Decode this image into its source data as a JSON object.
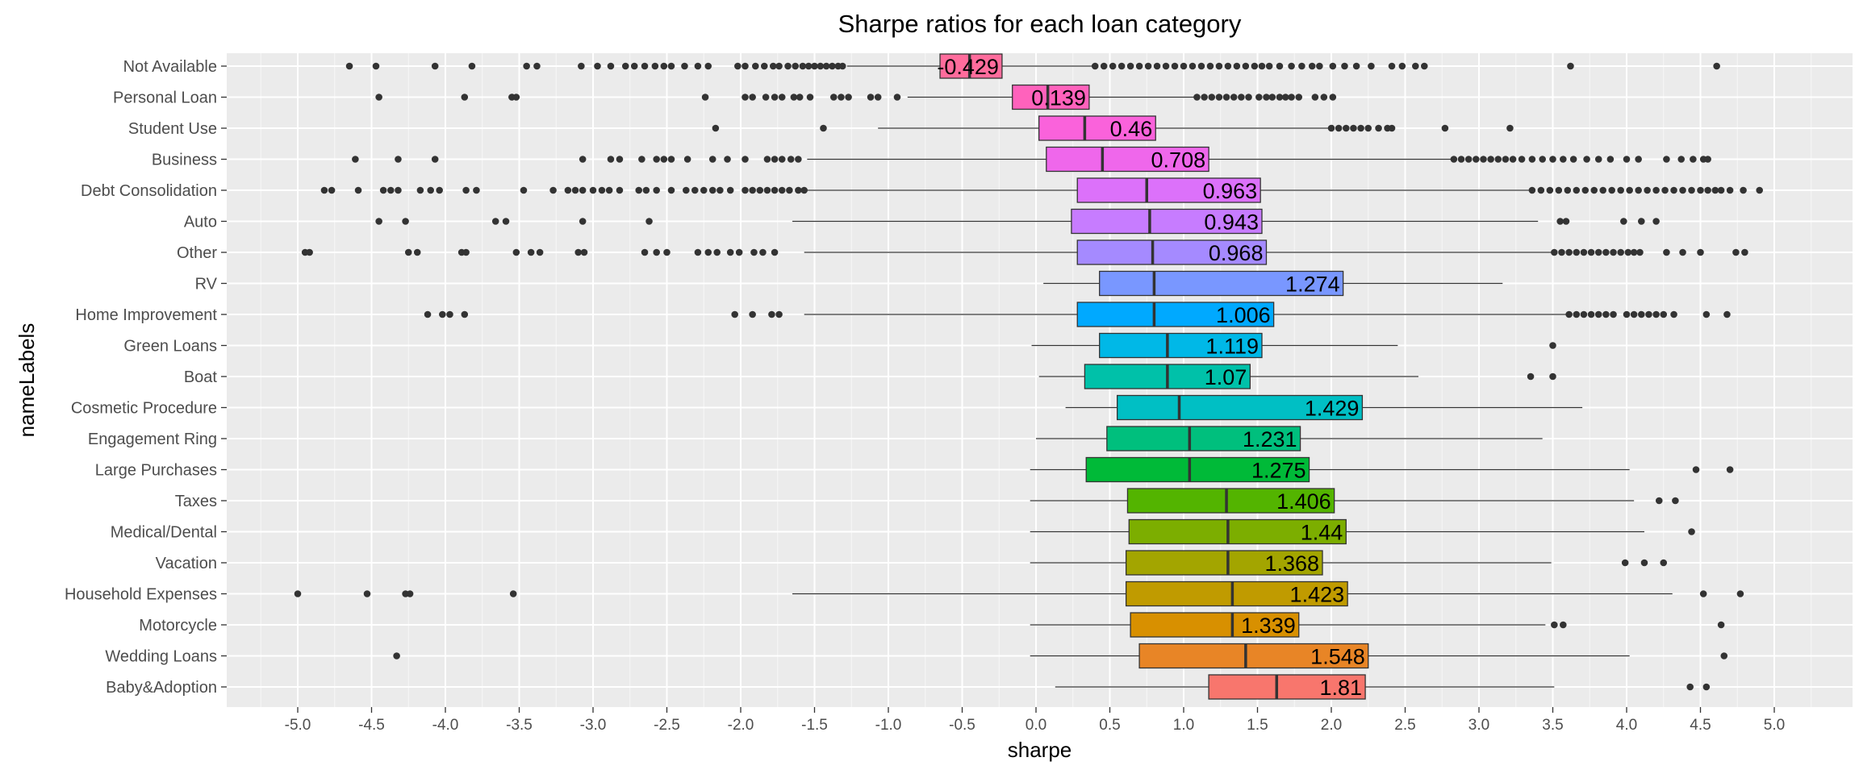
{
  "chart_data": {
    "type": "boxplot",
    "orientation": "horizontal",
    "title": "Sharpe ratios for each loan category",
    "xlabel": "sharpe",
    "ylabel": "nameLabels",
    "xlim": [
      -5.5,
      5.25
    ],
    "x_ticks": [
      -5.0,
      -4.5,
      -4.0,
      -3.5,
      -3.0,
      -2.5,
      -2.0,
      -1.5,
      -1.0,
      -0.5,
      0.0,
      0.5,
      1.0,
      1.5,
      2.0,
      2.5,
      3.0,
      3.5,
      4.0,
      4.5,
      5.0
    ],
    "x_tick_labels": [
      "-5.0",
      "-4.5",
      "-4.0",
      "-3.5",
      "-3.0",
      "-2.5",
      "-2.0",
      "-1.5",
      "-1.0",
      "-0.5",
      "0.0",
      "0.5",
      "1.0",
      "1.5",
      "2.0",
      "2.5",
      "3.0",
      "3.5",
      "4.0",
      "4.5",
      "5.0"
    ],
    "grid": true,
    "legend": "none",
    "categories": [
      {
        "name": "Not Available",
        "color": "#FF6C9C",
        "whisker_low": -1.28,
        "q1": -0.65,
        "median": -0.45,
        "q3": -0.23,
        "whisker_high": 0.38,
        "mean_label": "-0.429",
        "outliers": [
          -4.65,
          -4.47,
          -4.07,
          -3.82,
          -3.45,
          -3.38,
          -3.08,
          -2.97,
          -2.88,
          -2.78,
          -2.72,
          -2.65,
          -2.58,
          -2.52,
          -2.47,
          -2.38,
          -2.29,
          -2.22,
          -2.02,
          -1.97,
          -1.9,
          -1.84,
          -1.78,
          -1.74,
          -1.68,
          -1.63,
          -1.58,
          -1.54,
          -1.5,
          -1.46,
          -1.42,
          -1.38,
          -1.34,
          -1.31,
          0.4,
          0.46,
          0.52,
          0.58,
          0.64,
          0.7,
          0.76,
          0.82,
          0.88,
          0.94,
          1.0,
          1.06,
          1.12,
          1.18,
          1.24,
          1.3,
          1.36,
          1.42,
          1.48,
          1.53,
          1.58,
          1.65,
          1.73,
          1.8,
          1.87,
          1.92,
          2.01,
          2.09,
          2.17,
          2.27,
          2.41,
          2.48,
          2.57,
          2.63,
          3.62,
          4.61
        ]
      },
      {
        "name": "Personal Loan",
        "color": "#FF62BC",
        "whisker_low": -0.87,
        "q1": -0.16,
        "median": 0.08,
        "q3": 0.36,
        "whisker_high": 1.08,
        "mean_label": "0.139",
        "outliers": [
          -4.45,
          -3.87,
          -3.55,
          -3.52,
          -2.24,
          -1.97,
          -1.92,
          -1.83,
          -1.77,
          -1.72,
          -1.64,
          -1.6,
          -1.53,
          -1.37,
          -1.32,
          -1.27,
          -1.12,
          -1.07,
          -0.94,
          1.09,
          1.14,
          1.19,
          1.24,
          1.29,
          1.34,
          1.39,
          1.44,
          1.51,
          1.56,
          1.6,
          1.65,
          1.69,
          1.73,
          1.78,
          1.89,
          1.95,
          2.01
        ]
      },
      {
        "name": "Student Use",
        "color": "#FA62DB",
        "whisker_low": -1.07,
        "q1": 0.02,
        "median": 0.33,
        "q3": 0.81,
        "whisker_high": 1.98,
        "mean_label": "0.46",
        "outliers": [
          -2.17,
          -1.44,
          2.0,
          2.05,
          2.1,
          2.15,
          2.2,
          2.25,
          2.32,
          2.38,
          2.41,
          2.77,
          3.21
        ]
      },
      {
        "name": "Business",
        "color": "#EF67EB",
        "whisker_low": -1.55,
        "q1": 0.07,
        "median": 0.45,
        "q3": 1.17,
        "whisker_high": 2.81,
        "mean_label": "0.708",
        "outliers": [
          -4.61,
          -4.32,
          -4.07,
          -3.07,
          -2.88,
          -2.82,
          -2.67,
          -2.57,
          -2.52,
          -2.47,
          -2.36,
          -2.19,
          -2.09,
          -1.97,
          -1.82,
          -1.77,
          -1.72,
          -1.66,
          -1.61,
          2.83,
          2.88,
          2.93,
          2.98,
          3.03,
          3.08,
          3.13,
          3.18,
          3.23,
          3.29,
          3.36,
          3.43,
          3.5,
          3.57,
          3.64,
          3.73,
          3.81,
          3.89,
          4.0,
          4.08,
          4.27,
          4.37,
          4.45,
          4.52,
          4.55
        ]
      },
      {
        "name": "Debt Consolidation",
        "color": "#DC71FA",
        "whisker_low": -1.55,
        "q1": 0.28,
        "median": 0.75,
        "q3": 1.52,
        "whisker_high": 3.35,
        "mean_label": "0.963",
        "outliers": [
          -4.82,
          -4.77,
          -4.59,
          -4.42,
          -4.37,
          -4.32,
          -4.17,
          -4.1,
          -4.04,
          -3.86,
          -3.79,
          -3.47,
          -3.27,
          -3.17,
          -3.12,
          -3.07,
          -3.0,
          -2.94,
          -2.89,
          -2.82,
          -2.69,
          -2.64,
          -2.57,
          -2.47,
          -2.37,
          -2.31,
          -2.25,
          -2.19,
          -2.14,
          -2.07,
          -1.97,
          -1.92,
          -1.87,
          -1.82,
          -1.77,
          -1.72,
          -1.67,
          -1.61,
          -1.57,
          3.36,
          3.42,
          3.48,
          3.54,
          3.6,
          3.66,
          3.72,
          3.78,
          3.84,
          3.9,
          3.96,
          4.02,
          4.08,
          4.14,
          4.2,
          4.26,
          4.32,
          4.38,
          4.44,
          4.5,
          4.55,
          4.6,
          4.64,
          4.7,
          4.79,
          4.9
        ]
      },
      {
        "name": "Auto",
        "color": "#C77CFF",
        "whisker_low": -1.65,
        "q1": 0.24,
        "median": 0.77,
        "q3": 1.53,
        "whisker_high": 3.4,
        "mean_label": "0.943",
        "outliers": [
          -4.45,
          -4.27,
          -3.66,
          -3.59,
          -3.07,
          -2.62,
          3.55,
          3.59,
          3.98,
          4.1,
          4.2
        ]
      },
      {
        "name": "Other",
        "color": "#A58AFF",
        "whisker_low": -1.57,
        "q1": 0.28,
        "median": 0.79,
        "q3": 1.56,
        "whisker_high": 3.49,
        "mean_label": "0.968",
        "outliers": [
          -4.95,
          -4.92,
          -4.25,
          -4.19,
          -3.89,
          -3.86,
          -3.52,
          -3.42,
          -3.36,
          -3.1,
          -3.06,
          -2.65,
          -2.57,
          -2.5,
          -2.29,
          -2.22,
          -2.16,
          -2.07,
          -2.01,
          -1.91,
          -1.85,
          -1.77,
          3.51,
          3.56,
          3.61,
          3.66,
          3.71,
          3.76,
          3.81,
          3.86,
          3.91,
          3.96,
          4.01,
          4.05,
          4.09,
          4.27,
          4.38,
          4.5,
          4.74,
          4.8
        ]
      },
      {
        "name": "RV",
        "color": "#7997FF",
        "whisker_low": 0.05,
        "q1": 0.43,
        "median": 0.8,
        "q3": 2.08,
        "whisker_high": 3.16,
        "mean_label": "1.274",
        "outliers": []
      },
      {
        "name": "Home Improvement",
        "color": "#00A9FF",
        "whisker_low": -1.57,
        "q1": 0.28,
        "median": 0.8,
        "q3": 1.61,
        "whisker_high": 3.59,
        "mean_label": "1.006",
        "outliers": [
          -4.12,
          -4.02,
          -3.97,
          -3.87,
          -2.04,
          -1.92,
          -1.79,
          -1.74,
          3.61,
          3.66,
          3.71,
          3.76,
          3.81,
          3.86,
          3.91,
          4.0,
          4.05,
          4.1,
          4.15,
          4.2,
          4.25,
          4.32,
          4.54,
          4.68
        ]
      },
      {
        "name": "Green Loans",
        "color": "#00B8E7",
        "whisker_low": -0.03,
        "q1": 0.43,
        "median": 0.89,
        "q3": 1.53,
        "whisker_high": 2.45,
        "mean_label": "1.119",
        "outliers": [
          3.5
        ]
      },
      {
        "name": "Boat",
        "color": "#00C1A9",
        "whisker_low": 0.02,
        "q1": 0.33,
        "median": 0.89,
        "q3": 1.45,
        "whisker_high": 2.59,
        "mean_label": "1.07",
        "outliers": [
          3.35,
          3.5
        ]
      },
      {
        "name": "Cosmetic Procedure",
        "color": "#00BFC4",
        "whisker_low": 0.2,
        "q1": 0.55,
        "median": 0.97,
        "q3": 2.21,
        "whisker_high": 3.7,
        "mean_label": "1.429",
        "outliers": []
      },
      {
        "name": "Engagement Ring",
        "color": "#00BF7D",
        "whisker_low": 0.0,
        "q1": 0.48,
        "median": 1.04,
        "q3": 1.79,
        "whisker_high": 3.43,
        "mean_label": "1.231",
        "outliers": []
      },
      {
        "name": "Large Purchases",
        "color": "#00BA38",
        "whisker_low": -0.04,
        "q1": 0.34,
        "median": 1.04,
        "q3": 1.85,
        "whisker_high": 4.02,
        "mean_label": "1.275",
        "outliers": [
          4.47,
          4.7
        ]
      },
      {
        "name": "Taxes",
        "color": "#53B400",
        "whisker_low": -0.04,
        "q1": 0.62,
        "median": 1.29,
        "q3": 2.02,
        "whisker_high": 4.05,
        "mean_label": "1.406",
        "outliers": [
          4.22,
          4.33
        ]
      },
      {
        "name": "Medical/Dental",
        "color": "#7CAE00",
        "whisker_low": -0.04,
        "q1": 0.63,
        "median": 1.3,
        "q3": 2.1,
        "whisker_high": 4.12,
        "mean_label": "1.44",
        "outliers": [
          4.44
        ]
      },
      {
        "name": "Vacation",
        "color": "#A3A500",
        "whisker_low": -0.04,
        "q1": 0.61,
        "median": 1.3,
        "q3": 1.94,
        "whisker_high": 3.49,
        "mean_label": "1.368",
        "outliers": [
          3.99,
          4.12,
          4.25
        ]
      },
      {
        "name": "Household Expenses",
        "color": "#C09B00",
        "whisker_low": -1.65,
        "q1": 0.61,
        "median": 1.33,
        "q3": 2.11,
        "whisker_high": 4.31,
        "mean_label": "1.423",
        "outliers": [
          -5.0,
          -4.53,
          -4.27,
          -4.24,
          -3.54,
          4.52,
          4.77
        ]
      },
      {
        "name": "Motorcycle",
        "color": "#D89000",
        "whisker_low": -0.04,
        "q1": 0.64,
        "median": 1.33,
        "q3": 1.78,
        "whisker_high": 3.45,
        "mean_label": "1.339",
        "outliers": [
          3.51,
          3.57,
          4.64
        ]
      },
      {
        "name": "Wedding Loans",
        "color": "#E88526",
        "whisker_low": -0.04,
        "q1": 0.7,
        "median": 1.42,
        "q3": 2.25,
        "whisker_high": 4.02,
        "mean_label": "1.548",
        "outliers": [
          -4.33,
          4.66
        ]
      },
      {
        "name": "Baby&Adoption",
        "color": "#F8766D",
        "whisker_low": 0.13,
        "q1": 1.17,
        "median": 1.63,
        "q3": 2.23,
        "whisker_high": 3.51,
        "mean_label": "1.81",
        "outliers": [
          4.43,
          4.54
        ]
      }
    ]
  }
}
